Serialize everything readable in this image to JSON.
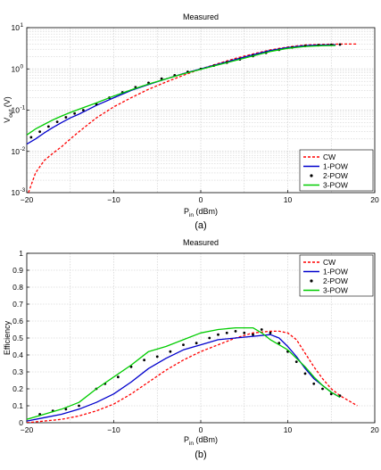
{
  "colors": {
    "CW": "#ff0000",
    "1-POW": "#0000cc",
    "2-POW": "#000000",
    "3-POW": "#00cc00",
    "grid": "#c8c8c8"
  },
  "chart_data": [
    {
      "type": "line",
      "title": "Measured",
      "caption": "(a)",
      "xlabel_main": "P",
      "xlabel_sub": "in",
      "xlabel_unit": " (dBm)",
      "ylabel_main": "V",
      "ylabel_sub": "out",
      "ylabel_unit": " (V)",
      "yscale": "log",
      "xlim": [
        -20,
        20
      ],
      "ylim": [
        0.001,
        10
      ],
      "xticks": [
        -20,
        -10,
        0,
        10,
        20
      ],
      "xtick_labels": [
        "−20",
        "−10",
        "0",
        "10",
        "20"
      ],
      "ytick_base": "10",
      "ytick_exponents": [
        "-3",
        "-2",
        "-1",
        "0",
        "1"
      ],
      "grid": true,
      "legend_position": "bottom-right",
      "series": [
        {
          "name": "CW",
          "style": "dashed",
          "x": [
            -19.8,
            -19,
            -18,
            -17,
            -16,
            -15,
            -14,
            -12,
            -10,
            -8,
            -6,
            -4,
            -2,
            0,
            2,
            4,
            6,
            8,
            10,
            12,
            14,
            16,
            18
          ],
          "y": [
            0.001,
            0.003,
            0.006,
            0.009,
            0.013,
            0.02,
            0.03,
            0.065,
            0.12,
            0.2,
            0.32,
            0.48,
            0.7,
            1.0,
            1.35,
            1.8,
            2.3,
            2.9,
            3.4,
            3.8,
            3.95,
            4.0,
            4.0
          ]
        },
        {
          "name": "1-POW",
          "style": "solid",
          "x": [
            -20,
            -19,
            -18,
            -17,
            -16,
            -15,
            -14,
            -12,
            -10,
            -8,
            -6,
            -4,
            -2,
            0,
            2,
            4,
            6,
            8,
            10,
            12,
            14,
            15.5
          ],
          "y": [
            0.015,
            0.02,
            0.028,
            0.038,
            0.05,
            0.065,
            0.08,
            0.13,
            0.2,
            0.3,
            0.42,
            0.57,
            0.77,
            1.0,
            1.3,
            1.7,
            2.2,
            2.8,
            3.3,
            3.65,
            3.8,
            3.85
          ]
        },
        {
          "name": "2-POW",
          "style": "dots",
          "x": [
            -19.5,
            -18.5,
            -17.5,
            -16.5,
            -15.5,
            -14.5,
            -13.5,
            -12,
            -10.5,
            -9,
            -7.5,
            -6,
            -4.5,
            -3,
            -1.5,
            0,
            1.5,
            3,
            4.5,
            6,
            7.5,
            9,
            10.5,
            12,
            13.5,
            15,
            16
          ],
          "y": [
            0.022,
            0.03,
            0.04,
            0.052,
            0.067,
            0.083,
            0.1,
            0.14,
            0.2,
            0.27,
            0.36,
            0.46,
            0.58,
            0.7,
            0.85,
            1.0,
            1.2,
            1.42,
            1.7,
            2.05,
            2.45,
            2.9,
            3.3,
            3.6,
            3.75,
            3.85,
            3.9
          ]
        },
        {
          "name": "3-POW",
          "style": "solid",
          "x": [
            -20,
            -19,
            -18,
            -17,
            -16,
            -15,
            -14,
            -12,
            -10,
            -8,
            -6,
            -4,
            -2,
            0,
            2,
            4,
            6,
            8,
            10,
            12,
            14,
            15.5
          ],
          "y": [
            0.025,
            0.035,
            0.045,
            0.058,
            0.072,
            0.088,
            0.105,
            0.15,
            0.22,
            0.31,
            0.43,
            0.57,
            0.76,
            0.98,
            1.25,
            1.6,
            2.05,
            2.65,
            3.15,
            3.5,
            3.65,
            3.7
          ]
        }
      ]
    },
    {
      "type": "line",
      "title": "Measured",
      "caption": "(b)",
      "xlabel_main": "P",
      "xlabel_sub": "in",
      "xlabel_unit": " (dBm)",
      "ylabel": "Efficiency",
      "yscale": "linear",
      "xlim": [
        -20,
        20
      ],
      "ylim": [
        0,
        1
      ],
      "xticks": [
        -20,
        -10,
        0,
        10,
        20
      ],
      "xtick_labels": [
        "−20",
        "−10",
        "0",
        "10",
        "20"
      ],
      "yticks": [
        0,
        0.1,
        0.2,
        0.3,
        0.4,
        0.5,
        0.6,
        0.7,
        0.8,
        0.9,
        1
      ],
      "ytick_labels": [
        "0",
        "0.1",
        "0.2",
        "0.3",
        "0.4",
        "0.5",
        "0.6",
        "0.7",
        "0.8",
        "0.9",
        "1"
      ],
      "grid": true,
      "legend_position": "top-right",
      "series": [
        {
          "name": "CW",
          "style": "dashed",
          "x": [
            -20,
            -18,
            -16,
            -14,
            -12,
            -10,
            -8,
            -6,
            -4,
            -2,
            0,
            2,
            4,
            6,
            8,
            9,
            10,
            11,
            12,
            13,
            14,
            15,
            16,
            17,
            18
          ],
          "y": [
            0,
            0.01,
            0.02,
            0.04,
            0.07,
            0.11,
            0.17,
            0.24,
            0.31,
            0.37,
            0.42,
            0.46,
            0.5,
            0.53,
            0.54,
            0.54,
            0.53,
            0.49,
            0.41,
            0.33,
            0.26,
            0.2,
            0.16,
            0.13,
            0.1
          ]
        },
        {
          "name": "1-POW",
          "style": "solid",
          "x": [
            -20,
            -18,
            -16,
            -14,
            -12,
            -10,
            -8,
            -6,
            -4,
            -2,
            0,
            2,
            4,
            6,
            8,
            9,
            10,
            11,
            12,
            13,
            14,
            15,
            16
          ],
          "y": [
            0.01,
            0.03,
            0.05,
            0.08,
            0.12,
            0.17,
            0.24,
            0.32,
            0.38,
            0.43,
            0.46,
            0.49,
            0.5,
            0.51,
            0.52,
            0.5,
            0.45,
            0.39,
            0.32,
            0.26,
            0.22,
            0.18,
            0.15
          ]
        },
        {
          "name": "2-POW",
          "style": "dots",
          "x": [
            -18.5,
            -17,
            -15.5,
            -14,
            -12,
            -11,
            -9.5,
            -8,
            -6.5,
            -5,
            -3.5,
            -2,
            -0.5,
            1,
            2,
            3,
            4,
            5,
            6,
            7,
            8,
            9,
            10,
            11,
            12,
            13,
            14,
            15,
            16
          ],
          "y": [
            0.05,
            0.07,
            0.08,
            0.1,
            0.2,
            0.23,
            0.27,
            0.33,
            0.37,
            0.39,
            0.42,
            0.46,
            0.47,
            0.5,
            0.52,
            0.53,
            0.54,
            0.53,
            0.52,
            0.55,
            0.53,
            0.47,
            0.42,
            0.36,
            0.29,
            0.23,
            0.2,
            0.17,
            0.16
          ]
        },
        {
          "name": "3-POW",
          "style": "solid",
          "x": [
            -20,
            -18,
            -16,
            -14,
            -12,
            -10,
            -8,
            -6,
            -4,
            -2,
            0,
            2,
            4,
            6,
            7,
            8,
            9,
            10,
            11,
            12,
            13,
            14,
            15,
            16
          ],
          "y": [
            0.02,
            0.05,
            0.08,
            0.12,
            0.2,
            0.27,
            0.34,
            0.42,
            0.45,
            0.49,
            0.53,
            0.55,
            0.56,
            0.56,
            0.53,
            0.49,
            0.46,
            0.43,
            0.38,
            0.33,
            0.27,
            0.22,
            0.18,
            0.15
          ]
        }
      ]
    }
  ]
}
